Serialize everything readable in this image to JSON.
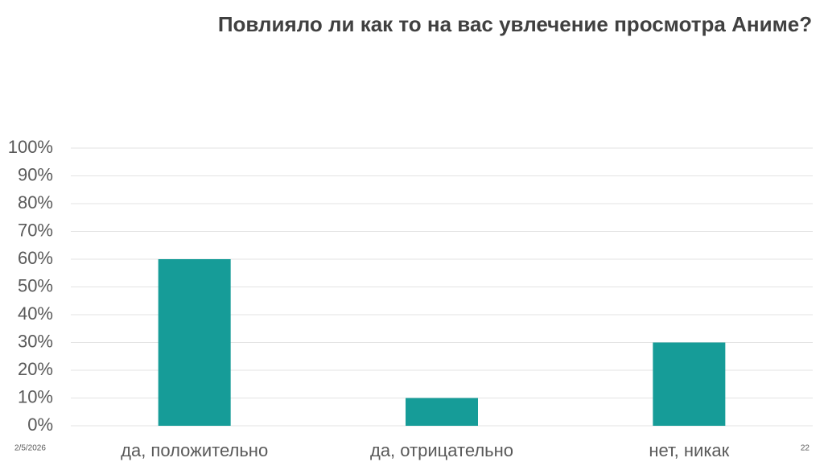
{
  "chart_data": {
    "type": "bar",
    "title": "Повлияло ли как то на вас увлечение просмотра Аниме?",
    "categories": [
      "да, положительно",
      "да, отрицательно",
      "нет, никак"
    ],
    "values": [
      60,
      10,
      30
    ],
    "color": "#169c98",
    "ylim": [
      0,
      100
    ],
    "yticks": [
      {
        "value": 0,
        "label": "0%"
      },
      {
        "value": 10,
        "label": "10%"
      },
      {
        "value": 20,
        "label": "20%"
      },
      {
        "value": 30,
        "label": "30%"
      },
      {
        "value": 40,
        "label": "40%"
      },
      {
        "value": 50,
        "label": "50%"
      },
      {
        "value": 60,
        "label": "60%"
      },
      {
        "value": 70,
        "label": "70%"
      },
      {
        "value": 80,
        "label": "80%"
      },
      {
        "value": 90,
        "label": "90%"
      },
      {
        "value": 100,
        "label": "100%"
      }
    ],
    "grid": true
  },
  "footer": {
    "date": "2/5/2026",
    "page": "22"
  }
}
